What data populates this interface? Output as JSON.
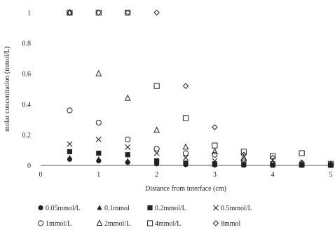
{
  "chart_data": {
    "type": "scatter",
    "title": "",
    "xlabel": "Distance from interface (cm)",
    "ylabel": "molar concentration (mmol/L)",
    "xlim": [
      0,
      5
    ],
    "ylim": [
      0,
      1
    ],
    "x_ticks": [
      0,
      1,
      2,
      3,
      4,
      5
    ],
    "y_ticks": [
      0,
      0.2,
      0.4,
      0.6,
      0.8,
      1
    ],
    "x_tick_labels": [
      "0",
      "1",
      "2",
      "3",
      "4",
      "5"
    ],
    "y_tick_labels": [
      "0",
      "0.2",
      "0.4",
      "0.6",
      "0.8",
      "1"
    ],
    "grid": false,
    "legend_position": "bottom",
    "series": [
      {
        "name": "0.05mmol/L",
        "marker": "circle-filled",
        "x": [
          0.5,
          1,
          1.5,
          2,
          2.5,
          3,
          3.5,
          4,
          4.5,
          5
        ],
        "y": [
          0.04,
          0.03,
          0.02,
          0.01,
          0.005,
          0.003,
          0.002,
          0.001,
          0.001,
          0.001
        ]
      },
      {
        "name": "0.1mmol",
        "marker": "triangle-filled",
        "x": [
          0.5,
          1,
          1.5,
          2,
          2.5,
          3,
          3.5,
          4,
          4.5,
          5
        ],
        "y": [
          0.05,
          0.04,
          0.03,
          0.02,
          0.01,
          0.005,
          0.003,
          0.002,
          0.001,
          0.001
        ]
      },
      {
        "name": "0.2mmol/L",
        "marker": "square-filled",
        "x": [
          0.5,
          1,
          1.5,
          2,
          2.5,
          3,
          3.5,
          4,
          4.5,
          5
        ],
        "y": [
          0.09,
          0.08,
          0.07,
          0.03,
          0.015,
          0.01,
          0.005,
          0.003,
          0.002,
          0.001
        ]
      },
      {
        "name": "0.5mmol/L",
        "marker": "x",
        "x": [
          0.5,
          1,
          1.5,
          2,
          2.5,
          3,
          3.5,
          4,
          4.5,
          5
        ],
        "y": [
          0.14,
          0.17,
          0.12,
          0.08,
          0.05,
          0.03,
          0.02,
          0.01,
          0.005,
          0.003
        ]
      },
      {
        "name": "1mmol/L",
        "marker": "circle-open",
        "x": [
          0.5,
          1,
          1.5,
          2,
          2.5,
          3,
          3.5,
          4,
          4.5,
          5
        ],
        "y": [
          0.36,
          0.28,
          0.17,
          0.11,
          0.08,
          0.07,
          0.03,
          0.01,
          0.005,
          0.003
        ]
      },
      {
        "name": "2mmol/L",
        "marker": "triangle-open",
        "x": [
          0.5,
          1,
          1.5,
          2,
          2.5,
          3,
          3.5,
          4,
          4.5,
          5
        ],
        "y": [
          1.0,
          0.6,
          0.44,
          0.23,
          0.12,
          0.09,
          0.05,
          0.02,
          0.01,
          0.005
        ]
      },
      {
        "name": "4mmol/L",
        "marker": "square-open",
        "x": [
          0.5,
          1,
          1.5,
          2,
          2.5,
          3,
          3.5,
          4,
          4.5,
          5
        ],
        "y": [
          1.0,
          1.0,
          1.0,
          0.52,
          0.31,
          0.13,
          0.09,
          0.06,
          0.08,
          0.01
        ]
      },
      {
        "name": "8mmol",
        "marker": "diamond-open",
        "x": [
          0.5,
          1,
          1.5,
          2,
          2.5,
          3,
          3.5,
          4,
          4.5,
          5
        ],
        "y": [
          1.0,
          1.0,
          1.0,
          1.0,
          0.52,
          0.25,
          0.07,
          0.05,
          0.02,
          0.01
        ]
      }
    ]
  }
}
